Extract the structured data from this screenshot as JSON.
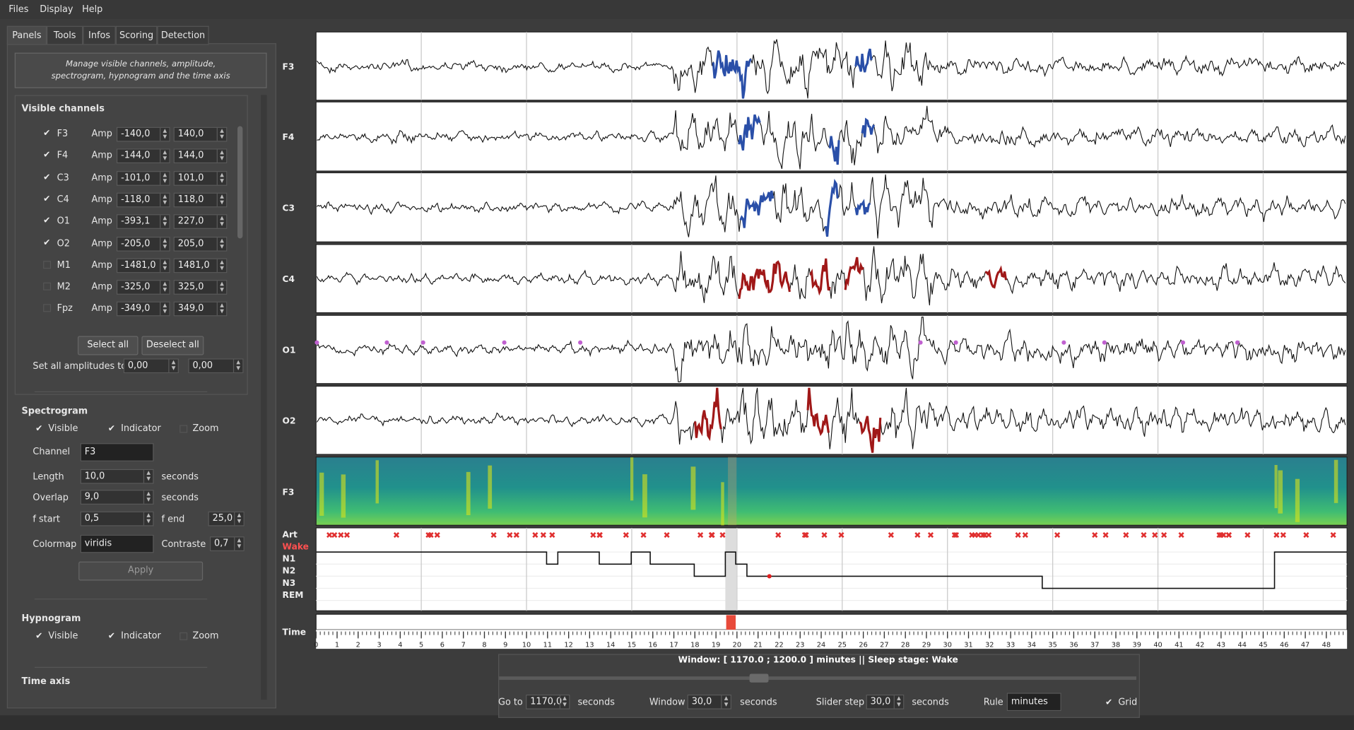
{
  "menu": [
    "Files",
    "Display",
    "Help"
  ],
  "tabs": [
    "Panels",
    "Tools",
    "Infos",
    "Scoring",
    "Detection"
  ],
  "panel_description": "Manage visible channels, amplitude, spectrogram, hypnogram and the time axis",
  "visible_channels": {
    "title": "Visible channels",
    "amp_label": "Amp",
    "rows": [
      {
        "name": "F3",
        "checked": true,
        "min": "-140,0",
        "max": "140,0"
      },
      {
        "name": "F4",
        "checked": true,
        "min": "-144,0",
        "max": "144,0"
      },
      {
        "name": "C3",
        "checked": true,
        "min": "-101,0",
        "max": "101,0"
      },
      {
        "name": "C4",
        "checked": true,
        "min": "-118,0",
        "max": "118,0"
      },
      {
        "name": "O1",
        "checked": true,
        "min": "-393,1",
        "max": "227,0"
      },
      {
        "name": "O2",
        "checked": true,
        "min": "-205,0",
        "max": "205,0"
      },
      {
        "name": "M1",
        "checked": false,
        "min": "-1481,0",
        "max": "1481,0"
      },
      {
        "name": "M2",
        "checked": false,
        "min": "-325,0",
        "max": "325,0"
      },
      {
        "name": "Fpz",
        "checked": false,
        "min": "-349,0",
        "max": "349,0"
      }
    ],
    "select_all": "Select all",
    "deselect_all": "Deselect all",
    "set_all_label": "Set all amplitudes to:",
    "set_all_min": "0,00",
    "set_all_max": "0,00"
  },
  "spectrogram": {
    "title": "Spectrogram",
    "checks": [
      {
        "label": "Visible",
        "checked": true
      },
      {
        "label": "Indicator",
        "checked": true
      },
      {
        "label": "Zoom",
        "checked": false
      }
    ],
    "channel_label": "Channel",
    "channel": "F3",
    "length_label": "Length",
    "length": "10,0",
    "overlap_label": "Overlap",
    "overlap": "9,0",
    "seconds": "seconds",
    "fstart_label": "f start",
    "fstart": "0,5",
    "fend_label": "f end",
    "fend": "25,0",
    "colormap_label": "Colormap",
    "colormap": "viridis",
    "contrast_label": "Contraste",
    "contrast": "0,7",
    "apply": "Apply"
  },
  "hypnogram_panel": {
    "title": "Hypnogram",
    "checks": [
      {
        "label": "Visible",
        "checked": true
      },
      {
        "label": "Indicator",
        "checked": true
      },
      {
        "label": "Zoom",
        "checked": false
      }
    ]
  },
  "time_axis_panel": {
    "title": "Time axis"
  },
  "plot": {
    "channels": [
      "F3",
      "F4",
      "C3",
      "C4",
      "O1",
      "O2"
    ],
    "spectrogram_channel": "F3",
    "stages": [
      "Art",
      "Wake",
      "N1",
      "N2",
      "N3",
      "REM"
    ],
    "time_label": "Time",
    "time_ticks": [
      0,
      1,
      2,
      3,
      4,
      5,
      6,
      7,
      8,
      9,
      10,
      11,
      12,
      13,
      14,
      15,
      16,
      17,
      18,
      19,
      20,
      21,
      22,
      23,
      24,
      25,
      26,
      27,
      28,
      29,
      30,
      31,
      32,
      33,
      34,
      35,
      36,
      37,
      38,
      39,
      40,
      41,
      42,
      43,
      44,
      45,
      46,
      47,
      48
    ],
    "grid": true
  },
  "footer": {
    "status": "Window: [ 1170.0 ; 1200.0 ] minutes || Sleep stage: Wake",
    "goto_label": "Go to",
    "goto": "1170,0",
    "seconds": "seconds",
    "window_label": "Window",
    "window": "30,0",
    "step_label": "Slider step",
    "step": "30,0",
    "rule_label": "Rule",
    "rule": "minutes",
    "grid": "Grid"
  }
}
